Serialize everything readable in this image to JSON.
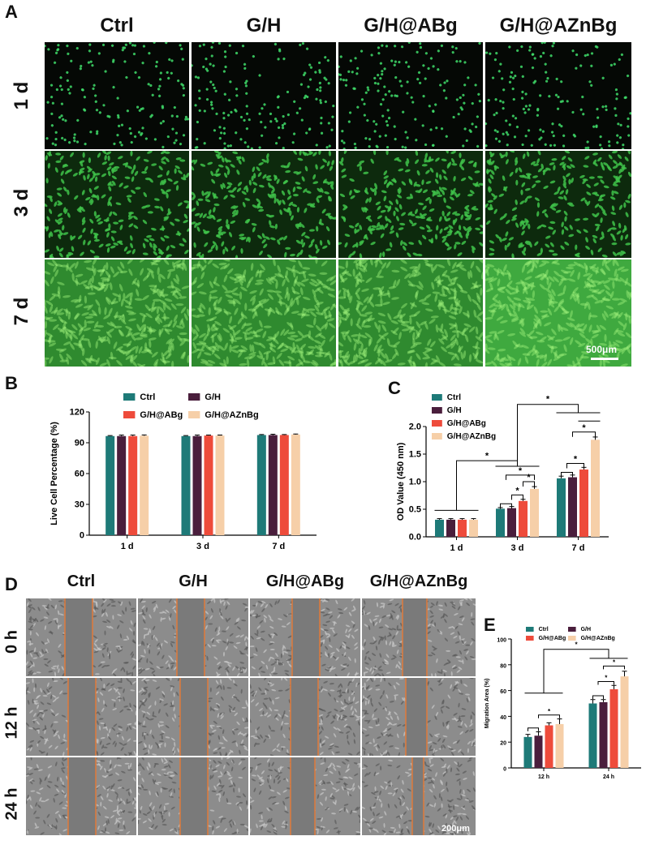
{
  "panels": {
    "A": {
      "label": "A",
      "columns": [
        "Ctrl",
        "G/H",
        "G/H@ABg",
        "G/H@AZnBg"
      ],
      "rows": [
        "1 d",
        "3 d",
        "7 d"
      ],
      "scale_label": "500μm"
    },
    "D": {
      "label": "D",
      "columns": [
        "Ctrl",
        "G/H",
        "G/H@ABg",
        "G/H@AZnBg"
      ],
      "rows": [
        "0 h",
        "12 h",
        "24 h"
      ],
      "scale_label": "200μm"
    }
  },
  "chart_data": [
    {
      "panel": "B",
      "type": "bar",
      "ylabel": "Live Cell Percentage (%)",
      "xlabel": "",
      "categories": [
        "1 d",
        "3 d",
        "7 d"
      ],
      "yticks": [
        0,
        30,
        60,
        90,
        120
      ],
      "ylim": [
        0,
        120
      ],
      "legend": "top",
      "series": [
        {
          "name": "Ctrl",
          "color": "#1e7a78",
          "values": [
            96.5,
            96.5,
            97.5
          ],
          "errors": [
            0.5,
            0.5,
            0.5
          ]
        },
        {
          "name": "G/H",
          "color": "#4a1e3c",
          "values": [
            96.5,
            96.5,
            97.5
          ],
          "errors": [
            1.0,
            1.0,
            0.8
          ]
        },
        {
          "name": "G/H@ABg",
          "color": "#ee4b3b",
          "values": [
            96.5,
            97.0,
            97.5
          ],
          "errors": [
            1.0,
            0.5,
            0.5
          ]
        },
        {
          "name": "G/H@AZnBg",
          "color": "#f6cfa8",
          "values": [
            96.8,
            97.0,
            98.0
          ],
          "errors": [
            0.8,
            0.5,
            0.5
          ]
        }
      ]
    },
    {
      "panel": "C",
      "type": "bar",
      "ylabel": "OD Value (450 nm)",
      "xlabel": "",
      "categories": [
        "1 d",
        "3 d",
        "7 d"
      ],
      "yticks": [
        "0.0",
        "0.5",
        "1.0",
        "1.5",
        "2.0"
      ],
      "ylim": [
        0,
        2.0
      ],
      "legend": "top-left",
      "significance_label": "*",
      "series": [
        {
          "name": "Ctrl",
          "color": "#1e7a78",
          "values": [
            0.31,
            0.51,
            1.06
          ],
          "errors": [
            0.02,
            0.02,
            0.04
          ]
        },
        {
          "name": "G/H",
          "color": "#4a1e3c",
          "values": [
            0.31,
            0.52,
            1.08
          ],
          "errors": [
            0.02,
            0.03,
            0.04
          ]
        },
        {
          "name": "G/H@ABg",
          "color": "#ee4b3b",
          "values": [
            0.31,
            0.65,
            1.22
          ],
          "errors": [
            0.02,
            0.03,
            0.04
          ]
        },
        {
          "name": "G/H@AZnBg",
          "color": "#f6cfa8",
          "values": [
            0.31,
            0.87,
            1.76
          ],
          "errors": [
            0.02,
            0.04,
            0.05
          ]
        }
      ]
    },
    {
      "panel": "E",
      "type": "bar",
      "ylabel": "Migration Area (%)",
      "xlabel": "",
      "categories": [
        "12 h",
        "24 h"
      ],
      "yticks": [
        0,
        20,
        40,
        60,
        80,
        100
      ],
      "ylim": [
        0,
        100
      ],
      "legend": "top",
      "significance_label": "*",
      "series": [
        {
          "name": "Ctrl",
          "color": "#1e7a78",
          "values": [
            24,
            50
          ],
          "errors": [
            2,
            3
          ]
        },
        {
          "name": "G/H",
          "color": "#4a1e3c",
          "values": [
            25,
            51
          ],
          "errors": [
            3,
            2
          ]
        },
        {
          "name": "G/H@ABg",
          "color": "#ee4b3b",
          "values": [
            33,
            61
          ],
          "errors": [
            2,
            3
          ]
        },
        {
          "name": "G/H@AZnBg",
          "color": "#f6cfa8",
          "values": [
            34,
            71
          ],
          "errors": [
            4,
            4
          ]
        }
      ]
    }
  ]
}
